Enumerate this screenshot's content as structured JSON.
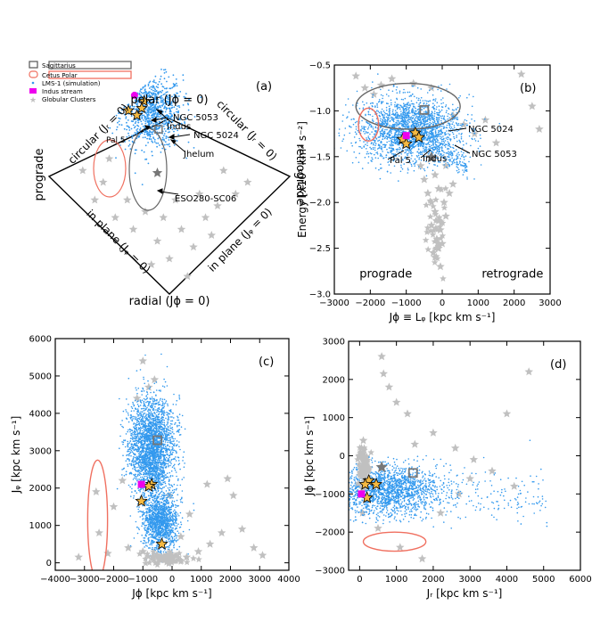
{
  "colors": {
    "lms": "#3399ee",
    "gc": "#c0c0c0",
    "sgr": "#666666",
    "cetus": "#f07060",
    "indus": "#ee00ee",
    "star_fill": "#f5b942",
    "marker_grey": "#777777"
  },
  "legend": {
    "sgr": "Sagittarius",
    "cetus": "Cetus Polar",
    "lms": "LMS-1 (simulation)",
    "indus": "Indus stream",
    "gc": "Globular Clusters"
  },
  "chart_data": [
    {
      "id": "a",
      "type": "scatter",
      "panel_label": "(a)",
      "title": "",
      "diamond_labels": {
        "top": "polar (Jϕ = 0)",
        "bottom": "radial (Jϕ = 0)",
        "left": "prograde",
        "right": "retrograde",
        "upper_left": "circular (Jᵣ = 0)",
        "upper_right": "circular (Jᵣ = 0)",
        "lower_left": "in plane (Jᵩ = 0)",
        "lower_right": "in plane (Jᵩ = 0)"
      },
      "annotations": [
        "NGC 5053",
        "Indus",
        "NGC 5024",
        "Pal 5",
        "Jhelum",
        "ESO280-SC06"
      ],
      "gc_stars": [
        [
          -0.72,
          0.05
        ],
        [
          -0.55,
          -0.05
        ],
        [
          -0.62,
          -0.2
        ],
        [
          -0.45,
          -0.35
        ],
        [
          -0.3,
          -0.45
        ],
        [
          -0.2,
          -0.3
        ],
        [
          -0.1,
          -0.55
        ],
        [
          0.0,
          -0.7
        ],
        [
          0.1,
          -0.45
        ],
        [
          0.2,
          -0.6
        ],
        [
          0.3,
          -0.35
        ],
        [
          0.4,
          -0.25
        ],
        [
          0.55,
          -0.15
        ],
        [
          0.65,
          -0.05
        ],
        [
          0.45,
          0.05
        ],
        [
          0.25,
          -0.15
        ],
        [
          0.05,
          -0.2
        ],
        [
          -0.15,
          -0.75
        ],
        [
          -0.35,
          -0.2
        ],
        [
          -0.5,
          0.15
        ],
        [
          0.15,
          -0.85
        ],
        [
          0.35,
          -0.5
        ],
        [
          -0.05,
          -0.35
        ]
      ],
      "lms_region": {
        "u_center": -0.15,
        "v_center": 0.55,
        "u_spread": 0.13,
        "v_spread": 0.28
      },
      "indus_marker": [
        -0.29,
        0.69
      ],
      "sgr_marker": [
        -0.09,
        0.4
      ],
      "named_stars": [
        [
          -0.21,
          0.64
        ],
        [
          -0.27,
          0.52
        ],
        [
          -0.23,
          0.58
        ],
        [
          -0.34,
          0.56
        ]
      ],
      "eso_marker": [
        -0.1,
        0.03
      ]
    },
    {
      "id": "b",
      "type": "scatter",
      "panel_label": "(b)",
      "xlabel": "Jϕ ≡ Lᵩ [kpc km s⁻¹]",
      "ylabel": "Energy [x10⁵ km² s⁻²]",
      "xlim": [
        -3000,
        3000
      ],
      "ylim": [
        -3.0,
        -0.5
      ],
      "xticks": [
        -3000,
        -2000,
        -1000,
        0,
        1000,
        2000,
        3000
      ],
      "yticks": [
        -3.0,
        -2.5,
        -2.0,
        -1.5,
        -1.0,
        -0.5
      ],
      "text_labels": {
        "prograde": "prograde",
        "retrograde": "retrograde"
      },
      "annotations": [
        "NGC 5024",
        "NGC 5053",
        "Indus",
        "Pal 5"
      ],
      "lms_region": {
        "x_center": -900,
        "y_center": -1.2,
        "x_spread": 700,
        "y_spread": 0.18
      },
      "sgr_ellipse": {
        "cx": -950,
        "cy": -0.95,
        "rx": 1450,
        "ry": 0.25
      },
      "cetus_ellipse": {
        "cx": -2050,
        "cy": -1.15,
        "rx": 280,
        "ry": 0.18
      },
      "sgr_marker": [
        -500,
        -0.99
      ],
      "indus_marker": [
        -1000,
        -1.27
      ],
      "named_stars": [
        [
          -750,
          -1.24
        ],
        [
          -650,
          -1.29
        ],
        [
          -1100,
          -1.31
        ],
        [
          -1000,
          -1.36
        ]
      ],
      "gc_grey_star": [
        -300,
        -1.51
      ],
      "gc_stars": [
        [
          -2400,
          -0.62
        ],
        [
          -2150,
          -0.75
        ],
        [
          -1900,
          -0.82
        ],
        [
          -1700,
          -0.72
        ],
        [
          -1400,
          -0.65
        ],
        [
          -800,
          -0.7
        ],
        [
          -300,
          -0.75
        ],
        [
          300,
          -1.05
        ],
        [
          600,
          -1.15
        ],
        [
          900,
          -1.25
        ],
        [
          1200,
          -1.1
        ],
        [
          1500,
          -1.35
        ],
        [
          2200,
          -0.6
        ],
        [
          2500,
          -0.95
        ],
        [
          2700,
          -1.2
        ],
        [
          100,
          -1.6
        ],
        [
          -200,
          -1.7
        ],
        [
          -100,
          -1.85
        ],
        [
          -300,
          -2.0
        ],
        [
          -200,
          -2.1
        ],
        [
          -100,
          -2.2
        ],
        [
          -50,
          -2.3
        ],
        [
          -150,
          -2.4
        ],
        [
          -100,
          -2.5
        ],
        [
          -200,
          -2.6
        ],
        [
          -50,
          -2.7
        ],
        [
          200,
          -1.9
        ],
        [
          300,
          -1.8
        ],
        [
          -400,
          -1.9
        ],
        [
          -500,
          -1.75
        ],
        [
          -600,
          -1.6
        ],
        [
          50,
          -2.0
        ],
        [
          100,
          -2.15
        ],
        [
          -300,
          -2.25
        ],
        [
          0,
          -2.45
        ],
        [
          -250,
          -2.55
        ]
      ]
    },
    {
      "id": "c",
      "type": "scatter",
      "panel_label": "(c)",
      "xlabel": "Jϕ [kpc km s⁻¹]",
      "ylabel": "Jᵩ [kpc km s⁻¹]",
      "xlim": [
        -4000,
        4000
      ],
      "ylim": [
        -200,
        6000
      ],
      "xticks": [
        -4000,
        -3000,
        -2000,
        -1000,
        0,
        1000,
        2000,
        3000,
        4000
      ],
      "yticks": [
        0,
        1000,
        2000,
        3000,
        4000,
        5000,
        6000
      ],
      "lms_region_1": {
        "x_center": -700,
        "y_center": 3100,
        "x_spread": 380,
        "y_spread": 650
      },
      "lms_region_2": {
        "x_center": -400,
        "y_center": 1100,
        "x_spread": 300,
        "y_spread": 380
      },
      "cetus_ellipse": {
        "cx": -2550,
        "cy": 1150,
        "rx": 340,
        "ry": 1600
      },
      "sgr_marker": [
        -500,
        3280
      ],
      "indus_marker": [
        -1050,
        2100
      ],
      "named_stars": [
        [
          -700,
          2100
        ],
        [
          -800,
          2050
        ],
        [
          -1050,
          1650
        ],
        [
          -350,
          500
        ]
      ],
      "gc_stars": [
        [
          -1000,
          5400
        ],
        [
          -800,
          4700
        ],
        [
          -1200,
          4400
        ],
        [
          -600,
          4900
        ],
        [
          -1700,
          2200
        ],
        [
          -2000,
          1500
        ],
        [
          -2600,
          1900
        ],
        [
          -2500,
          800
        ],
        [
          -3200,
          150
        ],
        [
          -2200,
          250
        ],
        [
          -1500,
          400
        ],
        [
          -1000,
          300
        ],
        [
          -500,
          200
        ],
        [
          0,
          100
        ],
        [
          500,
          150
        ],
        [
          900,
          300
        ],
        [
          1300,
          500
        ],
        [
          1700,
          800
        ],
        [
          2100,
          1800
        ],
        [
          2400,
          900
        ],
        [
          2800,
          400
        ],
        [
          3100,
          200
        ],
        [
          1900,
          2250
        ],
        [
          1200,
          2100
        ],
        [
          600,
          1300
        ],
        [
          -100,
          1800
        ],
        [
          300,
          700
        ]
      ]
    },
    {
      "id": "d",
      "type": "scatter",
      "panel_label": "(d)",
      "xlabel": "Jᵣ [kpc km s⁻¹]",
      "ylabel": "Jϕ [kpc km s⁻¹]",
      "xlim": [
        -300,
        6000
      ],
      "ylim": [
        -3000,
        3000
      ],
      "xticks": [
        0,
        1000,
        2000,
        3000,
        4000,
        5000,
        6000
      ],
      "yticks": [
        -3000,
        -2000,
        -1000,
        0,
        1000,
        2000,
        3000
      ],
      "lms_region": {
        "x_center": 700,
        "y_center": -900,
        "x_spread": 700,
        "y_spread": 330
      },
      "cetus_ellipse": {
        "cx": 950,
        "cy": -2250,
        "rx": 850,
        "ry": 250
      },
      "sgr_marker": [
        1450,
        -450
      ],
      "indus_marker": [
        50,
        -1000
      ],
      "named_stars": [
        [
          250,
          -650
        ],
        [
          450,
          -750
        ],
        [
          150,
          -750
        ],
        [
          200,
          -1100
        ]
      ],
      "gc_grey_star": [
        600,
        -300
      ],
      "gc_stars": [
        [
          50,
          200
        ],
        [
          100,
          400
        ],
        [
          150,
          -200
        ],
        [
          200,
          -400
        ],
        [
          80,
          -1500
        ],
        [
          600,
          2600
        ],
        [
          650,
          2150
        ],
        [
          800,
          1800
        ],
        [
          1000,
          1400
        ],
        [
          1300,
          1100
        ],
        [
          2000,
          600
        ],
        [
          2600,
          200
        ],
        [
          3100,
          -100
        ],
        [
          3600,
          -400
        ],
        [
          4200,
          -800
        ],
        [
          4600,
          2200
        ],
        [
          4000,
          1100
        ],
        [
          1700,
          -2700
        ],
        [
          1100,
          -2400
        ],
        [
          2200,
          -1500
        ],
        [
          2700,
          -1000
        ],
        [
          3000,
          -600
        ],
        [
          500,
          -1900
        ],
        [
          1500,
          300
        ]
      ]
    }
  ]
}
